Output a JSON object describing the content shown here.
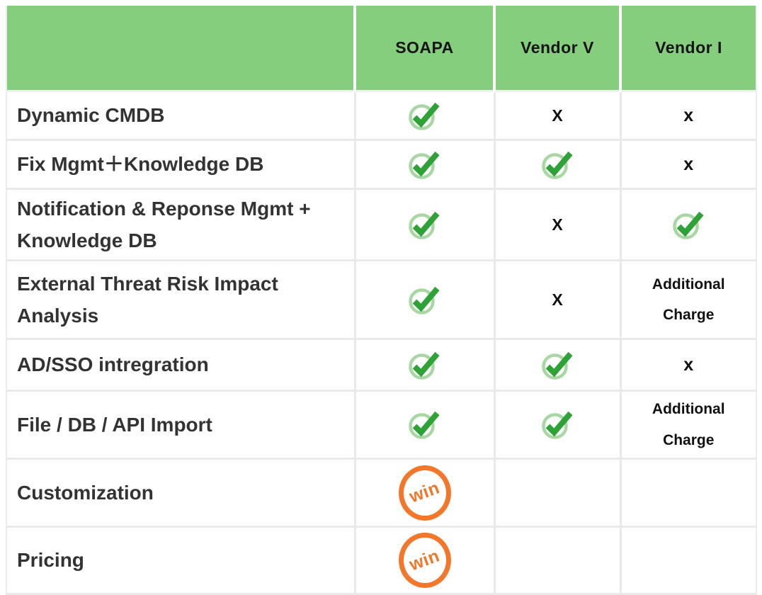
{
  "table": {
    "win_label": "win",
    "columns": [
      {
        "label": ""
      },
      {
        "label": "SOAPA"
      },
      {
        "label": "Vendor V"
      },
      {
        "label": "Vendor I"
      }
    ],
    "rows": [
      {
        "feature": "Dynamic CMDB",
        "soapa": "check",
        "vendor_v": "X",
        "vendor_i": "x"
      },
      {
        "feature": "Fix Mgmt＋Knowledge DB",
        "soapa": "check",
        "vendor_v": "check",
        "vendor_i": "x"
      },
      {
        "feature": "Notification & Reponse Mgmt + Knowledge DB",
        "soapa": "check",
        "vendor_v": "X",
        "vendor_i": "check"
      },
      {
        "feature": "External Threat Risk Impact Analysis",
        "soapa": "check",
        "vendor_v": "X",
        "vendor_i": "Additional Charge"
      },
      {
        "feature": "AD/SSO intregration",
        "soapa": "check",
        "vendor_v": "check",
        "vendor_i": "x"
      },
      {
        "feature": "File / DB / API Import",
        "soapa": "check",
        "vendor_v": "check",
        "vendor_i": "Additional Charge"
      },
      {
        "feature": "Customization",
        "soapa": "win",
        "vendor_v": "",
        "vendor_i": ""
      },
      {
        "feature": "Pricing",
        "soapa": "win",
        "vendor_v": "",
        "vendor_i": ""
      }
    ],
    "colors": {
      "header_green": "#85ce7d",
      "check_ring_light_green": "#a9d7a3",
      "check_mark_green": "#2fa237",
      "win_orange": "#f2772b",
      "grid_line": "#e9e9e9",
      "feature_text": "#333333",
      "mark_text": "#111111"
    }
  },
  "chart_data": {
    "type": "table",
    "title": "",
    "columns": [
      "",
      "SOAPA",
      "Vendor V",
      "Vendor I"
    ],
    "rows": [
      [
        "Dynamic CMDB",
        "check",
        "X",
        "x"
      ],
      [
        "Fix Mgmt＋Knowledge DB",
        "check",
        "check",
        "x"
      ],
      [
        "Notification & Reponse Mgmt + Knowledge DB",
        "check",
        "X",
        "check"
      ],
      [
        "External Threat Risk Impact Analysis",
        "check",
        "X",
        "Additional Charge"
      ],
      [
        "AD/SSO intregration",
        "check",
        "check",
        "x"
      ],
      [
        "File / DB / API Import",
        "check",
        "check",
        "Additional Charge"
      ],
      [
        "Customization",
        "win",
        "",
        ""
      ],
      [
        "Pricing",
        "win",
        "",
        ""
      ]
    ],
    "legend": {
      "check": "feature included",
      "X": "feature not included",
      "x": "feature not included",
      "Additional Charge": "available at extra cost",
      "win": "category winner"
    }
  }
}
